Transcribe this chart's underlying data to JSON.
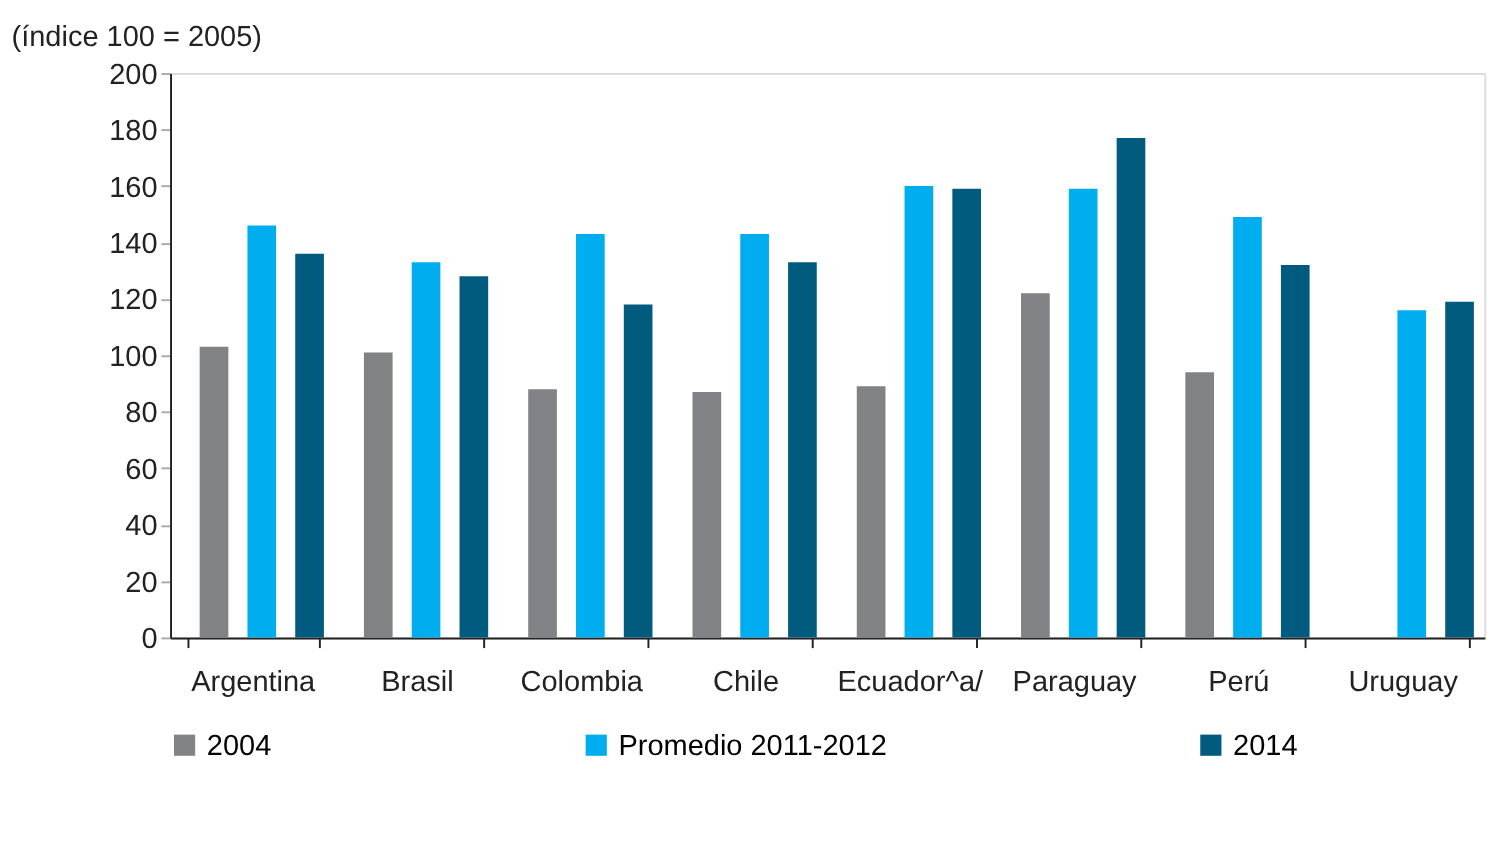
{
  "chart_data": {
    "type": "bar",
    "ylabel": "(índice 100 = 2005)",
    "categories": [
      "Argentina",
      "Brasil",
      "Colombia",
      "Chile",
      "Ecuador^a/",
      "Paraguay",
      "Perú",
      "Uruguay"
    ],
    "series": [
      {
        "name": "2004",
        "color": "#808285",
        "values": [
          103,
          101,
          88,
          87,
          89,
          122,
          94,
          null
        ]
      },
      {
        "name": "Promedio 2011-2012",
        "color": "#00aeef",
        "values": [
          146,
          133,
          143,
          143,
          160,
          159,
          149,
          116
        ]
      },
      {
        "name": "2014",
        "color": "#005b7f",
        "values": [
          136,
          128,
          118,
          133,
          159,
          177,
          132,
          119
        ]
      }
    ],
    "ylim": [
      0,
      200
    ],
    "yticks": [
      0,
      20,
      40,
      60,
      80,
      100,
      120,
      140,
      160,
      180,
      200
    ],
    "grid": false,
    "legend": "bottom"
  }
}
